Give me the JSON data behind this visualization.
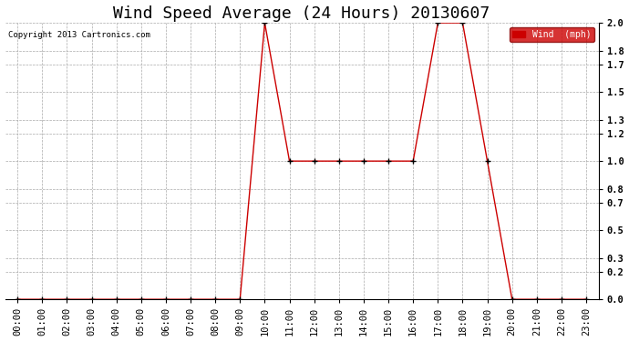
{
  "title": "Wind Speed Average (24 Hours) 20130607",
  "copyright_text": "Copyright 2013 Cartronics.com",
  "legend_label": "Wind  (mph)",
  "legend_bg": "#cc0000",
  "legend_text_color": "#ffffff",
  "background_color": "#ffffff",
  "plot_bg": "#ffffff",
  "line_color": "#cc0000",
  "marker_color": "#000000",
  "ylim": [
    0.0,
    2.0
  ],
  "yticks": [
    0.0,
    0.2,
    0.3,
    0.5,
    0.7,
    0.8,
    1.0,
    1.2,
    1.3,
    1.5,
    1.7,
    1.8,
    2.0
  ],
  "hours": [
    0,
    1,
    2,
    3,
    4,
    5,
    6,
    7,
    8,
    9,
    10,
    11,
    12,
    13,
    14,
    15,
    16,
    17,
    18,
    19,
    20,
    21,
    22,
    23
  ],
  "values": [
    0.0,
    0.0,
    0.0,
    0.0,
    0.0,
    0.0,
    0.0,
    0.0,
    0.0,
    0.0,
    2.0,
    1.0,
    1.0,
    1.0,
    1.0,
    1.0,
    1.0,
    2.0,
    2.0,
    1.0,
    0.0,
    0.0,
    0.0,
    0.0
  ],
  "title_fontsize": 13,
  "tick_fontsize": 7.5,
  "figsize": [
    6.9,
    3.75
  ],
  "dpi": 100
}
